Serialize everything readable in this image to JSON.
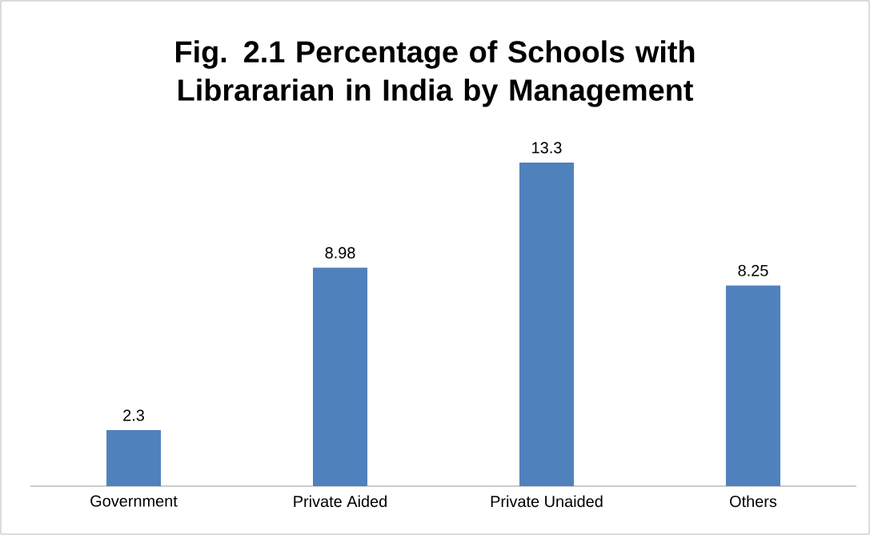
{
  "chart_data": {
    "type": "bar",
    "title": "Fig. 2.1 Percentage of Schools with Librararian in India  by Management",
    "categories": [
      "Government",
      "Private Aided",
      "Private Unaided",
      "Others"
    ],
    "values": [
      2.3,
      8.98,
      13.3,
      8.25
    ],
    "color": "#4f81bd",
    "data_labels": true
  }
}
